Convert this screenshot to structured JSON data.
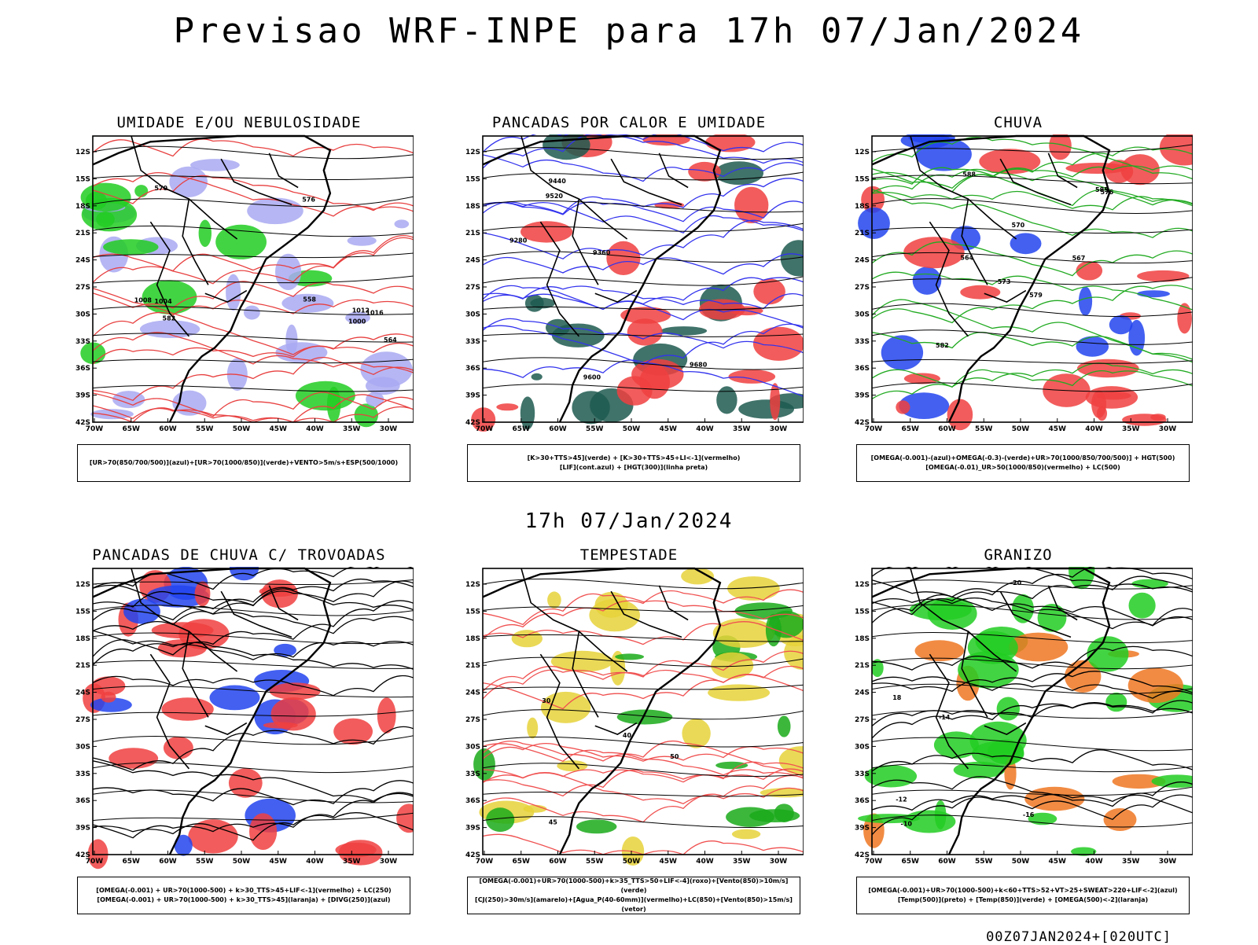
{
  "title": "Previsao WRF-INPE  para 17h 07/Jan/2024",
  "subtitle": "17h 07/Jan/2024",
  "footer": "00Z07JAN2024+[020UTC]",
  "axes": {
    "lat_labels": [
      "12S",
      "15S",
      "18S",
      "21S",
      "24S",
      "27S",
      "30S",
      "33S",
      "36S",
      "39S",
      "42S"
    ],
    "lon_labels": [
      "70W",
      "65W",
      "60W",
      "55W",
      "50W",
      "45W",
      "40W",
      "35W",
      "30W"
    ]
  },
  "chart_data": [
    {
      "type": "heatmap",
      "title": "UMIDADE E/OU NEBULOSIDADE",
      "legend": [
        "[UR>70(850/700/500)](azul)+[UR>70(1000/850)](verde)+VENTO>5m/s+ESP(500/1000)"
      ],
      "contour_labels": [
        "1008",
        "1012",
        "1004",
        "1000",
        "1016",
        "576",
        "582",
        "570",
        "564",
        "558"
      ],
      "colors": {
        "primary": "#a9a9f2",
        "secondary": "#22cc22",
        "contour": "#e84040"
      }
    },
    {
      "type": "heatmap",
      "title": "PANCADAS POR CALOR E UMIDADE",
      "legend": [
        "[K>30+TTS>45](verde)  +  [K>30+TTS>45+LI<-1](vermelho)",
        "[LIF](cont.azul)  +  [HGT(300)](linha preta)"
      ],
      "contour_labels": [
        "9680",
        "9600",
        "9520",
        "9440",
        "9360",
        "9280"
      ],
      "colors": {
        "primary": "#f04040",
        "secondary": "#1e5a50",
        "contour": "#3333ee"
      }
    },
    {
      "type": "heatmap",
      "title": "CHUVA",
      "legend": [
        "[OMEGA(-0.001)-(azul)+OMEGA(-0.3)-(verde)+UR>70(1000/850/700/500)]  +  HGT(500)",
        "[OMEGA(-0.01)_UR>50(1000/850)(vermelho)  +  LC(500)"
      ],
      "contour_labels": [
        "588",
        "585",
        "582",
        "579",
        "576",
        "573",
        "570",
        "567",
        "564"
      ],
      "colors": {
        "primary": "#f04040",
        "secondary": "#2244ee",
        "contour": "#22aa22"
      }
    },
    {
      "type": "heatmap",
      "title": "PANCADAS DE CHUVA C/ TROVOADAS",
      "legend": [
        "[OMEGA(-0.001)  +  UR>70(1000-500)  +  k>30_TTS>45+LIF<-1](vermelho)  +  LC(250)",
        "[OMEGA(-0.001)  +  UR>70(1000-500)  +  k>30_TTS>45](laranja)  +  [DIVG(250)](azul)"
      ],
      "contour_labels": [],
      "colors": {
        "primary": "#f04040",
        "secondary": "#2244ee",
        "contour": "#000000"
      }
    },
    {
      "type": "heatmap",
      "title": "TEMPESTADE",
      "legend": [
        "[OMEGA(-0.001)+UR>70(1000-500)+k>35_TTS>50+LIF<-4](roxo)+[Vento(850)>10m/s](verde)",
        "[CJ(250)>30m/s](amarelo)+[Agua_P(40-60mm)](vermelho)+LC(850)+[Vento(850)>15m/s](vetor)"
      ],
      "contour_labels": [
        "40",
        "50",
        "45",
        "30"
      ],
      "colors": {
        "primary": "#e6d23a",
        "secondary": "#1aaa1a",
        "contour": "#f05050"
      }
    },
    {
      "type": "heatmap",
      "title": "GRANIZO",
      "legend": [
        "[OMEGA(-0.001)+UR>70(1000-500)+k<60+TTS>52+VT>25+SWEAT>220+LIF<-2](azul)",
        "[Temp(500)](preto)  +  [Temp(850)](verde)  +  [OMEGA(500)<-2](laranja)"
      ],
      "contour_labels": [
        "-12",
        "-10",
        "-14",
        "-16",
        "18",
        "20"
      ],
      "colors": {
        "primary": "#22cc22",
        "secondary": "#ee7722",
        "contour": "#000000"
      }
    }
  ]
}
